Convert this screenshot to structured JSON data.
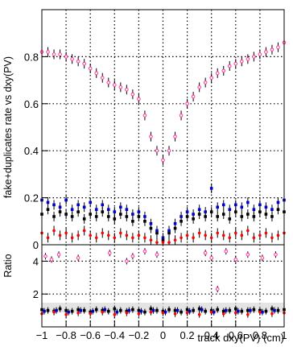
{
  "chart_data": [
    {
      "panel": "main",
      "type": "scatter",
      "ylabel": "fake+duplicates rate vs dxy(PV)",
      "xlim": [
        -1,
        1
      ],
      "ylim": [
        0,
        1.0
      ],
      "x_ticks": [
        -1,
        -0.8,
        -0.6,
        -0.4,
        -0.2,
        0,
        0.2,
        0.4,
        0.6,
        0.8,
        1
      ],
      "y_ticks": [
        0,
        0.2,
        0.4,
        0.6,
        0.8
      ],
      "y_tick_labels": [
        "0",
        "0.2",
        "0.4",
        "0.6",
        "0.8"
      ],
      "grid": true,
      "series": [
        {
          "color": "#ff3399",
          "marker": "open-circle",
          "x": [
            -1.0,
            -0.95,
            -0.9,
            -0.85,
            -0.8,
            -0.75,
            -0.7,
            -0.65,
            -0.6,
            -0.55,
            -0.5,
            -0.45,
            -0.4,
            -0.35,
            -0.3,
            -0.25,
            -0.2,
            -0.15,
            -0.1,
            -0.05,
            0.0,
            0.05,
            0.1,
            0.15,
            0.2,
            0.25,
            0.3,
            0.35,
            0.4,
            0.45,
            0.5,
            0.55,
            0.6,
            0.65,
            0.7,
            0.75,
            0.8,
            0.85,
            0.9,
            0.95,
            1.0
          ],
          "y": [
            0.82,
            0.82,
            0.81,
            0.81,
            0.8,
            0.79,
            0.78,
            0.77,
            0.75,
            0.73,
            0.71,
            0.69,
            0.68,
            0.67,
            0.66,
            0.64,
            0.62,
            0.55,
            0.46,
            0.4,
            0.36,
            0.4,
            0.46,
            0.55,
            0.6,
            0.63,
            0.67,
            0.69,
            0.71,
            0.73,
            0.74,
            0.76,
            0.77,
            0.78,
            0.79,
            0.8,
            0.81,
            0.82,
            0.83,
            0.84,
            0.86
          ]
        },
        {
          "color": "#000000",
          "marker": "filled-square",
          "x": [
            -1.0,
            -0.95,
            -0.9,
            -0.85,
            -0.8,
            -0.75,
            -0.7,
            -0.65,
            -0.6,
            -0.55,
            -0.5,
            -0.45,
            -0.4,
            -0.35,
            -0.3,
            -0.25,
            -0.2,
            -0.15,
            -0.1,
            -0.05,
            0.0,
            0.05,
            0.1,
            0.15,
            0.2,
            0.25,
            0.3,
            0.35,
            0.4,
            0.45,
            0.5,
            0.55,
            0.6,
            0.65,
            0.7,
            0.75,
            0.8,
            0.85,
            0.9,
            0.95,
            1.0
          ],
          "y": [
            0.13,
            0.15,
            0.12,
            0.14,
            0.13,
            0.12,
            0.14,
            0.11,
            0.13,
            0.12,
            0.14,
            0.12,
            0.11,
            0.13,
            0.12,
            0.1,
            0.12,
            0.1,
            0.07,
            0.05,
            0.02,
            0.05,
            0.07,
            0.1,
            0.12,
            0.11,
            0.13,
            0.12,
            0.14,
            0.12,
            0.13,
            0.11,
            0.14,
            0.12,
            0.13,
            0.12,
            0.14,
            0.13,
            0.12,
            0.15,
            0.14
          ]
        },
        {
          "color": "#0000cc",
          "marker": "filled-square",
          "x": [
            -1.0,
            -0.95,
            -0.9,
            -0.85,
            -0.8,
            -0.75,
            -0.7,
            -0.65,
            -0.6,
            -0.55,
            -0.5,
            -0.45,
            -0.4,
            -0.35,
            -0.3,
            -0.25,
            -0.2,
            -0.15,
            -0.1,
            -0.05,
            0.0,
            0.05,
            0.1,
            0.15,
            0.2,
            0.25,
            0.3,
            0.35,
            0.4,
            0.45,
            0.5,
            0.55,
            0.6,
            0.65,
            0.7,
            0.75,
            0.8,
            0.85,
            0.9,
            0.95,
            1.0
          ],
          "y": [
            0.19,
            0.18,
            0.17,
            0.16,
            0.19,
            0.15,
            0.17,
            0.16,
            0.18,
            0.15,
            0.17,
            0.15,
            0.14,
            0.16,
            0.15,
            0.13,
            0.14,
            0.12,
            0.09,
            0.06,
            0.03,
            0.06,
            0.09,
            0.12,
            0.14,
            0.13,
            0.15,
            0.14,
            0.24,
            0.16,
            0.17,
            0.15,
            0.17,
            0.16,
            0.18,
            0.15,
            0.17,
            0.16,
            0.15,
            0.18,
            0.19
          ]
        },
        {
          "color": "#ff0000",
          "marker": "filled-circle",
          "x": [
            -1.0,
            -0.95,
            -0.9,
            -0.85,
            -0.8,
            -0.75,
            -0.7,
            -0.65,
            -0.6,
            -0.55,
            -0.5,
            -0.45,
            -0.4,
            -0.35,
            -0.3,
            -0.25,
            -0.2,
            -0.15,
            -0.1,
            -0.05,
            0.0,
            0.05,
            0.1,
            0.15,
            0.2,
            0.25,
            0.3,
            0.35,
            0.4,
            0.45,
            0.5,
            0.55,
            0.6,
            0.65,
            0.7,
            0.75,
            0.8,
            0.85,
            0.9,
            0.95,
            1.0
          ],
          "y": [
            0.05,
            0.03,
            0.06,
            0.04,
            0.05,
            0.03,
            0.04,
            0.06,
            0.04,
            0.03,
            0.05,
            0.04,
            0.03,
            0.05,
            0.04,
            0.03,
            0.04,
            0.03,
            0.02,
            0.01,
            0.01,
            0.01,
            0.02,
            0.03,
            0.04,
            0.03,
            0.05,
            0.04,
            0.03,
            0.05,
            0.04,
            0.03,
            0.05,
            0.04,
            0.06,
            0.03,
            0.04,
            0.05,
            0.03,
            0.04,
            0.05
          ]
        }
      ]
    },
    {
      "panel": "ratio",
      "type": "scatter",
      "ylabel": "Ratio",
      "xlabel": "track dxy(PV) (cm)",
      "xlim": [
        -1,
        1
      ],
      "ylim": [
        0,
        5
      ],
      "x_ticks": [
        -1,
        -0.8,
        -0.6,
        -0.4,
        -0.2,
        0,
        0.2,
        0.4,
        0.6,
        0.8,
        1
      ],
      "x_tick_labels": [
        "−1",
        "−0.8",
        "−0.6",
        "−0.4",
        "−0.2",
        "0",
        "0.2",
        "0.4",
        "0.6",
        "0.8",
        "1"
      ],
      "y_ticks": [
        2,
        4
      ],
      "y_tick_labels": [
        "2",
        "4"
      ],
      "grid": true,
      "series": [
        {
          "color": "#ff3399",
          "marker": "open-circle",
          "x": [
            -0.97,
            -0.92,
            -0.86,
            -0.7,
            -0.44,
            -0.3,
            -0.25,
            -0.15,
            -0.05,
            0.35,
            0.4,
            0.45,
            0.52,
            0.6,
            0.7,
            0.82,
            0.93
          ],
          "y": [
            4.3,
            4.1,
            4.4,
            4.2,
            4.5,
            4.0,
            4.3,
            4.6,
            4.4,
            4.5,
            4.2,
            2.3,
            4.6,
            4.1,
            4.4,
            4.2,
            4.4
          ]
        },
        {
          "color": "#000000",
          "marker": "filled-square",
          "x": [
            -1.0,
            -0.95,
            -0.9,
            -0.85,
            -0.8,
            -0.75,
            -0.7,
            -0.65,
            -0.6,
            -0.55,
            -0.5,
            -0.45,
            -0.4,
            -0.35,
            -0.3,
            -0.25,
            -0.2,
            -0.15,
            -0.1,
            -0.05,
            0.0,
            0.05,
            0.1,
            0.15,
            0.2,
            0.25,
            0.3,
            0.35,
            0.4,
            0.45,
            0.5,
            0.55,
            0.6,
            0.65,
            0.7,
            0.75,
            0.8,
            0.85,
            0.9,
            0.95,
            1.0
          ],
          "y": [
            1.05,
            1.0,
            0.95,
            1.1,
            1.0,
            0.95,
            1.05,
            1.0,
            0.9,
            1.05,
            1.0,
            0.95,
            1.1,
            1.0,
            0.95,
            1.05,
            1.0,
            0.9,
            1.1,
            1.0,
            0.95,
            1.05,
            1.0,
            0.9,
            1.05,
            1.0,
            1.1,
            0.95,
            1.0,
            1.05,
            0.95,
            1.0,
            1.1,
            0.95,
            1.0,
            1.05,
            1.0,
            0.95,
            1.1,
            1.0,
            1.05
          ]
        },
        {
          "color": "#0000cc",
          "marker": "filled-square",
          "x": [
            -0.98,
            -0.88,
            -0.78,
            -0.68,
            -0.58,
            -0.48,
            -0.38,
            -0.28,
            -0.18,
            -0.08,
            0.02,
            0.12,
            0.22,
            0.32,
            0.42,
            0.52,
            0.62,
            0.72,
            0.82,
            0.92
          ],
          "y": [
            0.95,
            1.0,
            0.9,
            1.0,
            0.95,
            1.05,
            0.9,
            1.0,
            0.95,
            1.0,
            0.9,
            1.0,
            0.95,
            1.05,
            0.9,
            1.0,
            0.95,
            1.0,
            0.9,
            1.0
          ]
        },
        {
          "color": "#ff0000",
          "marker": "filled-circle",
          "x": [
            -1.0,
            -0.9,
            -0.8,
            -0.7,
            -0.6,
            -0.5,
            -0.4,
            -0.3,
            -0.2,
            -0.1,
            0.0,
            0.1,
            0.2,
            0.3,
            0.4,
            0.5,
            0.6,
            0.7,
            0.8,
            0.9,
            1.0
          ],
          "y": [
            0.8,
            0.9,
            0.75,
            0.85,
            0.8,
            0.9,
            0.75,
            0.85,
            0.8,
            0.9,
            0.85,
            0.8,
            0.85,
            0.75,
            0.9,
            0.8,
            0.85,
            0.75,
            0.9,
            0.8,
            0.85
          ]
        }
      ]
    }
  ]
}
